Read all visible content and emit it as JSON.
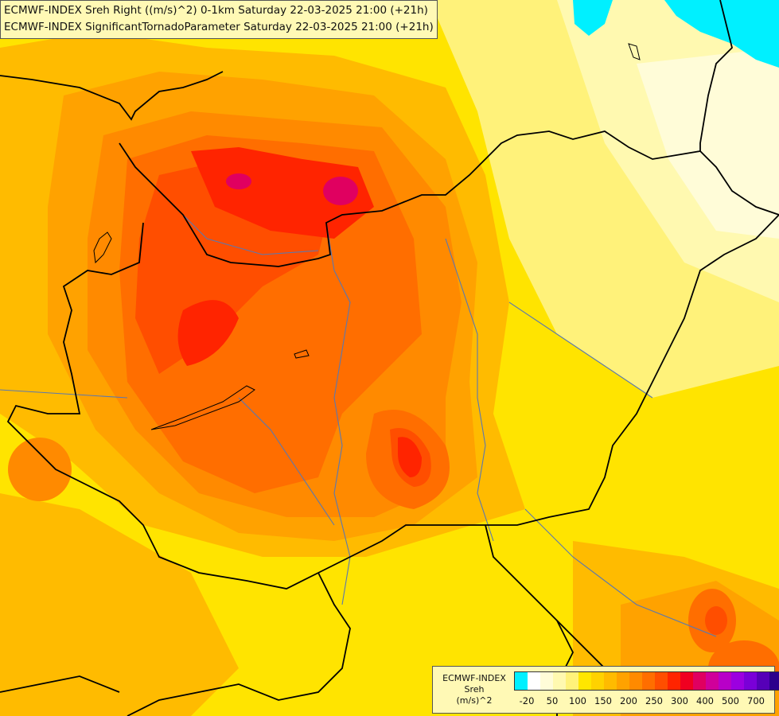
{
  "titles": [
    "ECMWF-INDEX Sreh Right ((m/s)^2) 0-1km Saturday 22-03-2025 21:00 (+21h)",
    "ECMWF-INDEX SignificantTornadoParameter Saturday 22-03-2025 21:00 (+21h)"
  ],
  "legend": {
    "line1": "ECMWF-INDEX",
    "line2": "Sreh",
    "line3": "(m/s)^2",
    "colors": [
      "#00f0ff",
      "#ffffff",
      "#fffcd8",
      "#fff9b0",
      "#fff27a",
      "#ffe600",
      "#ffd200",
      "#ffbb00",
      "#ffa200",
      "#ff8a00",
      "#ff6e00",
      "#ff4e00",
      "#ff2400",
      "#f00020",
      "#e00060",
      "#d0009a",
      "#b800c8",
      "#9c00e0",
      "#7a00d8",
      "#5600b8",
      "#2c008c"
    ],
    "ticks": [
      "-20",
      "50",
      "100",
      "150",
      "200",
      "250",
      "300",
      "400",
      "500",
      "700"
    ]
  },
  "colors": {
    "water": "#00f0ff",
    "border": "#000000",
    "rivers": "#5a78b0"
  }
}
